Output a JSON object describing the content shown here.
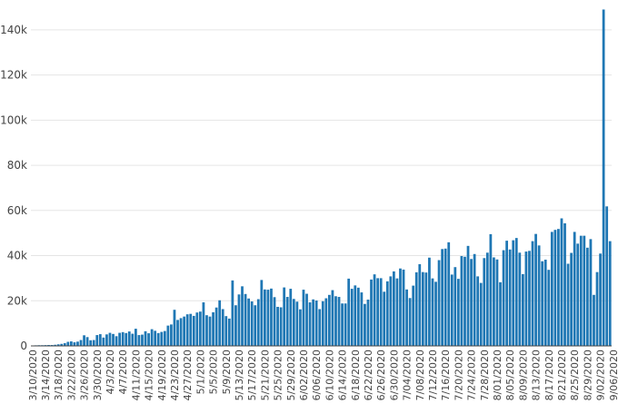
{
  "chart_data": {
    "type": "bar",
    "title": "",
    "xlabel": "",
    "ylabel": "",
    "ylim": [
      0,
      150000
    ],
    "grid": true,
    "bar_color": "#1f77b4",
    "grid_color": "#e5e5e5",
    "y_ticks": [
      {
        "value": 0,
        "label": "0"
      },
      {
        "value": 20000,
        "label": "20k"
      },
      {
        "value": 40000,
        "label": "40k"
      },
      {
        "value": 60000,
        "label": "60k"
      },
      {
        "value": 80000,
        "label": "80k"
      },
      {
        "value": 100000,
        "label": "100k"
      },
      {
        "value": 120000,
        "label": "120k"
      },
      {
        "value": 140000,
        "label": "140k"
      }
    ],
    "x_ticks": [
      {
        "index": 0,
        "label": "3/10/2020"
      },
      {
        "index": 4,
        "label": "3/14/2020"
      },
      {
        "index": 8,
        "label": "3/18/2020"
      },
      {
        "index": 12,
        "label": "3/22/2020"
      },
      {
        "index": 16,
        "label": "3/26/2020"
      },
      {
        "index": 20,
        "label": "3/30/2020"
      },
      {
        "index": 24,
        "label": "4/3/2020"
      },
      {
        "index": 28,
        "label": "4/7/2020"
      },
      {
        "index": 32,
        "label": "4/11/2020"
      },
      {
        "index": 36,
        "label": "4/15/2020"
      },
      {
        "index": 40,
        "label": "4/19/2020"
      },
      {
        "index": 44,
        "label": "4/23/2020"
      },
      {
        "index": 48,
        "label": "4/27/2020"
      },
      {
        "index": 52,
        "label": "5/1/2020"
      },
      {
        "index": 56,
        "label": "5/5/2020"
      },
      {
        "index": 60,
        "label": "5/9/2020"
      },
      {
        "index": 64,
        "label": "5/13/2020"
      },
      {
        "index": 68,
        "label": "5/17/2020"
      },
      {
        "index": 72,
        "label": "5/21/2020"
      },
      {
        "index": 76,
        "label": "5/25/2020"
      },
      {
        "index": 80,
        "label": "5/29/2020"
      },
      {
        "index": 84,
        "label": "6/02/2020"
      },
      {
        "index": 88,
        "label": "6/06/2020"
      },
      {
        "index": 92,
        "label": "6/10/2020"
      },
      {
        "index": 96,
        "label": "6/14/2020"
      },
      {
        "index": 100,
        "label": "6/18/2020"
      },
      {
        "index": 104,
        "label": "6/22/2020"
      },
      {
        "index": 108,
        "label": "6/26/2020"
      },
      {
        "index": 112,
        "label": "6/30/2020"
      },
      {
        "index": 116,
        "label": "7/04/2020"
      },
      {
        "index": 120,
        "label": "7/08/2020"
      },
      {
        "index": 124,
        "label": "7/12/2020"
      },
      {
        "index": 128,
        "label": "7/16/2020"
      },
      {
        "index": 132,
        "label": "7/20/2020"
      },
      {
        "index": 136,
        "label": "7/24/2020"
      },
      {
        "index": 140,
        "label": "7/28/2020"
      },
      {
        "index": 144,
        "label": "8/01/2020"
      },
      {
        "index": 148,
        "label": "8/05/2020"
      },
      {
        "index": 152,
        "label": "8/09/2020"
      },
      {
        "index": 156,
        "label": "8/13/2020"
      },
      {
        "index": 160,
        "label": "8/17/2020"
      },
      {
        "index": 164,
        "label": "8/21/2020"
      },
      {
        "index": 168,
        "label": "8/25/2020"
      },
      {
        "index": 172,
        "label": "8/29/2020"
      },
      {
        "index": 176,
        "label": "9/02/2020"
      },
      {
        "index": 180,
        "label": "9/06/2020"
      }
    ],
    "series": [
      {
        "values": [
          200,
          250,
          300,
          300,
          350,
          400,
          400,
          500,
          700,
          900,
          1200,
          1800,
          2000,
          1600,
          1900,
          2600,
          4700,
          3900,
          2500,
          2600,
          4800,
          5200,
          3700,
          5100,
          5800,
          5300,
          4300,
          5800,
          6100,
          5700,
          6400,
          5400,
          7600,
          4800,
          5000,
          6500,
          5600,
          7400,
          6700,
          5700,
          6200,
          6600,
          9000,
          9500,
          16000,
          11500,
          12300,
          13000,
          14000,
          14200,
          13300,
          14800,
          15200,
          19300,
          13600,
          13000,
          14900,
          17000,
          20200,
          16300,
          13200,
          12100,
          29000,
          18000,
          22800,
          26400,
          23000,
          21000,
          19700,
          18000,
          20700,
          29200,
          25000,
          24900,
          25400,
          21600,
          17300,
          17100,
          25900,
          21700,
          25300,
          20800,
          19600,
          16200,
          24900,
          23100,
          19300,
          20600,
          20100,
          16300,
          19800,
          21100,
          22600,
          24700,
          22000,
          21700,
          18800,
          18800,
          29800,
          25300,
          26800,
          25800,
          23700,
          18600,
          20500,
          29400,
          31700,
          30000,
          30000,
          24000,
          28600,
          30800,
          33000,
          29900,
          34300,
          33800,
          25000,
          21200,
          26700,
          32600,
          36200,
          32700,
          32500,
          39100,
          29900,
          28400,
          38000,
          42900,
          43100,
          45900,
          31600,
          34900,
          29700,
          39800,
          39500,
          44300,
          38500,
          40700,
          30800,
          27900,
          38900,
          41300,
          49500,
          39200,
          38300,
          28200,
          42400,
          46600,
          42700,
          46800,
          47800,
          41300,
          31800,
          41800,
          42100,
          46400,
          49600,
          44500,
          37500,
          38200,
          33700,
          50500,
          51400,
          51800,
          56500,
          54300,
          36400,
          41200,
          50500,
          45300,
          48800,
          48800,
          43500,
          47300,
          22600,
          32700,
          40900,
          149000,
          61800,
          46400
        ]
      }
    ]
  }
}
